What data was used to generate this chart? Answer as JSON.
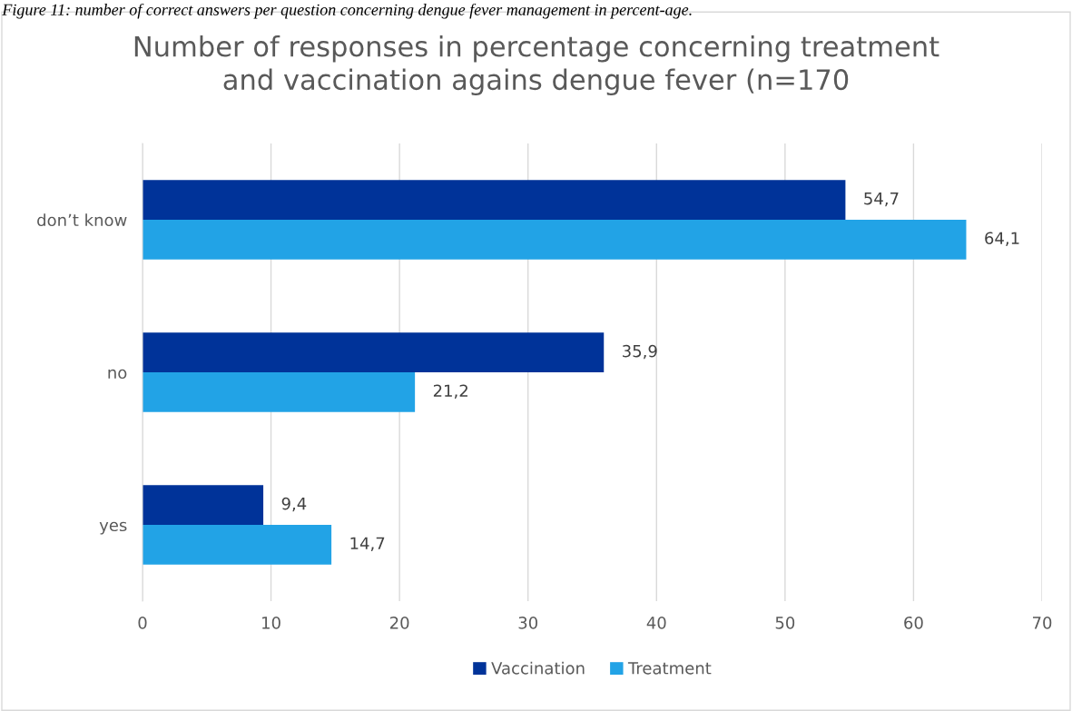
{
  "chart_data": {
    "type": "bar",
    "orientation": "horizontal",
    "title": "Number of responses in percentage concerning treatment\nand vaccination agains dengue fever (n=170",
    "annotations": [
      "Figure 11: number of correct answers per question concerning dengue fever management in percent-age."
    ],
    "categories": [
      "don’t know",
      "no",
      "yes"
    ],
    "series": [
      {
        "name": "Vaccination",
        "color": "#003399",
        "values": [
          54.7,
          35.9,
          9.4
        ],
        "value_labels": [
          "54,7",
          "35,9",
          "9,4"
        ]
      },
      {
        "name": "Treatment",
        "color": "#22a3e6",
        "values": [
          64.1,
          21.2,
          14.7
        ],
        "value_labels": [
          "64,1",
          "21,2",
          "14,7"
        ]
      }
    ],
    "xlim": [
      0,
      70
    ],
    "xticks": [
      0,
      10,
      20,
      30,
      40,
      50,
      60,
      70
    ],
    "grid": "x",
    "legend": "bottom"
  }
}
